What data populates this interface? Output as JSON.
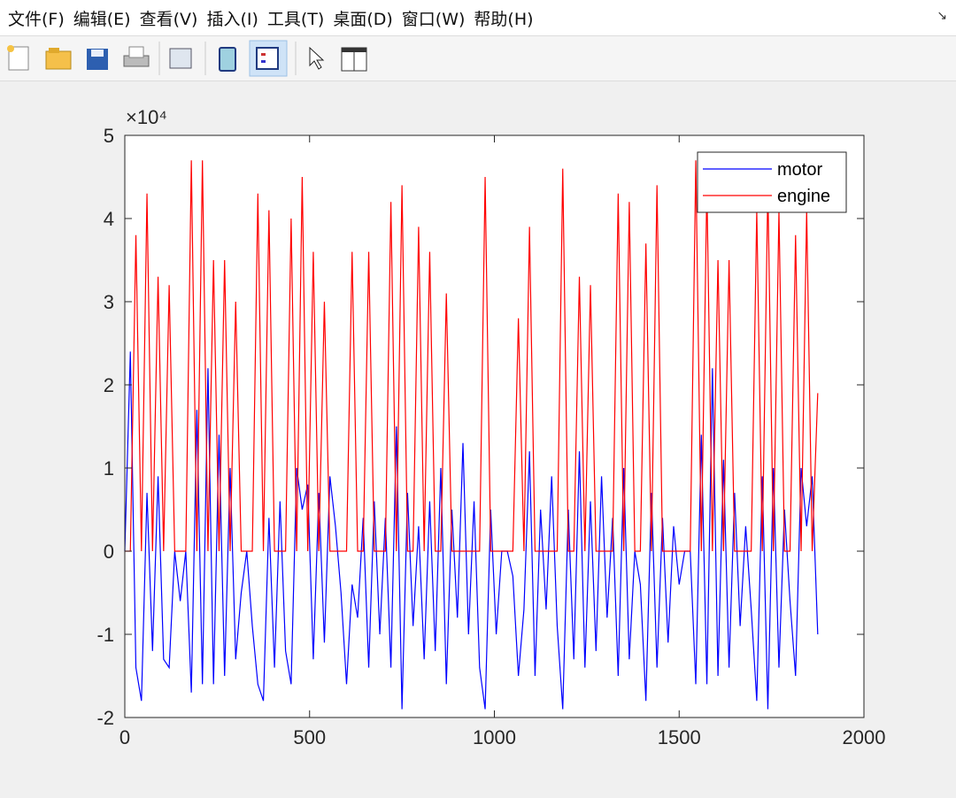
{
  "menu": [
    "文件(F)",
    "编辑(E)",
    "查看(V)",
    "插入(I)",
    "工具(T)",
    "桌面(D)",
    "窗口(W)",
    "帮助(H)"
  ],
  "chart_data": {
    "type": "line",
    "y_scale_label": "×10⁴",
    "xlim": [
      0,
      2000
    ],
    "xticks": [
      0,
      500,
      1000,
      1500,
      2000
    ],
    "ylim": [
      -2,
      5
    ],
    "yticks": [
      -2,
      -1,
      0,
      1,
      2,
      3,
      4,
      5
    ],
    "legend": "northeast",
    "x": [
      0,
      15,
      30,
      45,
      60,
      75,
      90,
      105,
      120,
      135,
      150,
      165,
      180,
      195,
      210,
      225,
      240,
      255,
      270,
      285,
      300,
      315,
      330,
      345,
      360,
      375,
      390,
      405,
      420,
      435,
      450,
      465,
      480,
      495,
      510,
      525,
      540,
      555,
      570,
      585,
      600,
      615,
      630,
      645,
      660,
      675,
      690,
      705,
      720,
      735,
      750,
      765,
      780,
      795,
      810,
      825,
      840,
      855,
      870,
      885,
      900,
      915,
      930,
      945,
      960,
      975,
      990,
      1005,
      1020,
      1035,
      1050,
      1065,
      1080,
      1095,
      1110,
      1125,
      1140,
      1155,
      1170,
      1185,
      1200,
      1215,
      1230,
      1245,
      1260,
      1275,
      1290,
      1305,
      1320,
      1335,
      1350,
      1365,
      1380,
      1395,
      1410,
      1425,
      1440,
      1455,
      1470,
      1485,
      1500,
      1515,
      1530,
      1545,
      1560,
      1575,
      1590,
      1605,
      1620,
      1635,
      1650,
      1665,
      1680,
      1695,
      1710,
      1725,
      1740,
      1755,
      1770,
      1785,
      1800,
      1815,
      1830,
      1845,
      1860,
      1875
    ],
    "series": [
      {
        "name": "motor",
        "color": "#0000ff",
        "values": [
          0,
          2.4,
          -1.4,
          -1.8,
          0.7,
          -1.2,
          0.9,
          -1.3,
          -1.4,
          0,
          -0.6,
          0,
          -1.7,
          1.7,
          -1.6,
          2.2,
          -1.6,
          1.4,
          -1.5,
          1.0,
          -1.3,
          -0.5,
          0,
          -0.9,
          -1.6,
          -1.8,
          0.4,
          -1.4,
          0.6,
          -1.2,
          -1.6,
          1.0,
          0.5,
          0.8,
          -1.3,
          0.7,
          -1.1,
          0.9,
          0.3,
          -0.5,
          -1.6,
          -0.4,
          -0.8,
          0.4,
          -1.4,
          0.6,
          -1.0,
          0.4,
          -1.4,
          1.5,
          -1.9,
          0.7,
          -0.9,
          0.3,
          -1.3,
          0.6,
          -1.2,
          1.0,
          -1.6,
          0.5,
          -0.8,
          1.3,
          -1.0,
          0.6,
          -1.4,
          -1.9,
          0.5,
          -1.0,
          0,
          0,
          -0.3,
          -1.5,
          -0.7,
          1.2,
          -1.5,
          0.5,
          -0.7,
          0.9,
          -0.9,
          -1.9,
          0.5,
          -1.3,
          1.2,
          -1.4,
          0.6,
          -1.2,
          0.9,
          -0.8,
          0.4,
          -1.5,
          1.0,
          -1.3,
          0,
          -0.4,
          -1.8,
          0.7,
          -1.4,
          0.4,
          -1.1,
          0.3,
          -0.4,
          0,
          0,
          -1.6,
          1.4,
          -1.6,
          2.2,
          -1.5,
          1.1,
          -1.4,
          0.7,
          -0.9,
          0.3,
          -0.7,
          -1.8,
          0.9,
          -1.9,
          1.0,
          -1.4,
          0.5,
          -0.6,
          -1.5,
          1.0,
          0.3,
          0.9,
          -1.0
        ]
      },
      {
        "name": "engine",
        "color": "#ff0000",
        "values": [
          0,
          0,
          3.8,
          0,
          4.3,
          0,
          3.3,
          0,
          3.2,
          0,
          0,
          0,
          4.7,
          0,
          4.7,
          0,
          3.5,
          0,
          3.5,
          0,
          3.0,
          0,
          0,
          0,
          4.3,
          0,
          4.1,
          0,
          0,
          0,
          4.0,
          0,
          4.5,
          0,
          3.6,
          0,
          3.0,
          0,
          0,
          0,
          0,
          3.6,
          0,
          0,
          3.6,
          0,
          0,
          0,
          4.2,
          0,
          4.4,
          0,
          0,
          3.9,
          0,
          3.6,
          0,
          0,
          3.1,
          0,
          0,
          0,
          0,
          0,
          0,
          4.5,
          0,
          0,
          0,
          0,
          0,
          2.8,
          0,
          3.9,
          0,
          0,
          0,
          0,
          0,
          4.6,
          0,
          0,
          3.3,
          0,
          3.2,
          0,
          0,
          0,
          0,
          4.3,
          0,
          4.2,
          0,
          0,
          3.7,
          0,
          4.4,
          0,
          0,
          0,
          0,
          0,
          0,
          4.7,
          0,
          4.4,
          0,
          3.5,
          0,
          3.5,
          0,
          0,
          0,
          0,
          4.1,
          0,
          4.4,
          0,
          4.1,
          0,
          0,
          3.8,
          0,
          4.1,
          0,
          1.9
        ]
      }
    ]
  }
}
